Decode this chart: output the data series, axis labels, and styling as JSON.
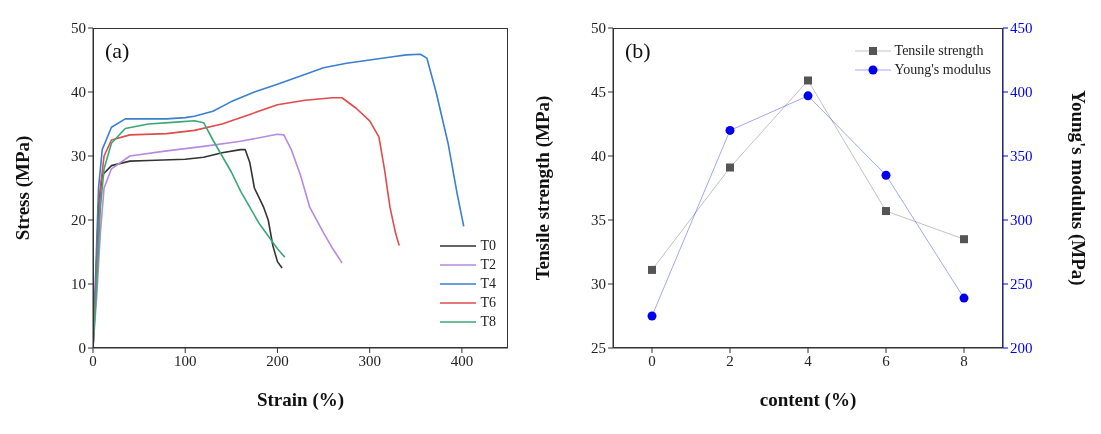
{
  "chart_data": [
    {
      "type": "line",
      "xlabel": "Strain (%)",
      "ylabel": "Stress (MPa)",
      "annotations": [
        "(a)"
      ],
      "xlim": [
        0,
        450
      ],
      "xticks": [
        0,
        100,
        200,
        300,
        400
      ],
      "ylim": [
        0,
        50
      ],
      "yticks": [
        0,
        10,
        20,
        30,
        40,
        50
      ],
      "grid": false,
      "legend": "bottom right",
      "marker": "none",
      "series": [
        {
          "name": "T0",
          "color": "#333333",
          "x": [
            0,
            3,
            6,
            10,
            20,
            40,
            60,
            100,
            120,
            140,
            160,
            165,
            170,
            175,
            185,
            190,
            195,
            200,
            205
          ],
          "values": [
            0,
            10,
            22,
            27,
            28.5,
            29.2,
            29.3,
            29.5,
            29.8,
            30.5,
            31,
            31,
            29,
            25,
            22,
            20,
            16,
            13.5,
            12.5
          ]
        },
        {
          "name": "T2",
          "color": "#b58ae0",
          "x": [
            0,
            4,
            8,
            12,
            20,
            40,
            80,
            120,
            160,
            200,
            207,
            215,
            225,
            235,
            250,
            260,
            270
          ],
          "values": [
            0,
            8,
            18,
            25,
            28,
            30,
            30.8,
            31.5,
            32.3,
            33.4,
            33.3,
            31,
            27,
            22,
            18,
            15.5,
            13.3
          ]
        },
        {
          "name": "T4",
          "color": "#3a7fd0",
          "x": [
            0,
            3,
            6,
            10,
            20,
            35,
            60,
            80,
            100,
            110,
            130,
            150,
            175,
            200,
            225,
            250,
            275,
            300,
            325,
            340,
            355,
            362,
            372,
            385,
            395,
            402
          ],
          "values": [
            0,
            12,
            25,
            31,
            34.5,
            35.8,
            35.8,
            35.8,
            36,
            36.2,
            37,
            38.5,
            40,
            41.2,
            42.5,
            43.8,
            44.5,
            45,
            45.5,
            45.8,
            45.9,
            45.3,
            40,
            32,
            24,
            19
          ]
        },
        {
          "name": "T6",
          "color": "#e04b4b",
          "x": [
            0,
            4,
            8,
            12,
            20,
            40,
            80,
            110,
            140,
            170,
            200,
            230,
            260,
            270,
            285,
            300,
            310,
            316,
            322,
            328,
            332
          ],
          "values": [
            0,
            12,
            25,
            30,
            32.5,
            33.3,
            33.5,
            34,
            35,
            36.5,
            38,
            38.7,
            39.1,
            39.1,
            37.5,
            35.5,
            33,
            28,
            22,
            18,
            16
          ]
        },
        {
          "name": "T8",
          "color": "#3aa876",
          "x": [
            0,
            4,
            8,
            12,
            20,
            35,
            60,
            90,
            110,
            120,
            130,
            140,
            150,
            160,
            170,
            180,
            190,
            200,
            208
          ],
          "values": [
            0,
            10,
            22,
            28,
            32,
            34.3,
            35,
            35.3,
            35.5,
            35.2,
            32.5,
            30,
            27.5,
            24.5,
            22,
            19.5,
            17.5,
            15.5,
            14.2
          ]
        }
      ]
    },
    {
      "type": "line",
      "xlabel": "content (%)",
      "ylabel": "Tensile strength (MPa)",
      "y2label": "Young's modulus (MPa)",
      "annotations": [
        "(b)"
      ],
      "xlim": [
        -1,
        9
      ],
      "xticks": [
        0,
        2,
        4,
        6,
        8
      ],
      "ylim": [
        25,
        50
      ],
      "yticks": [
        25,
        30,
        35,
        40,
        45,
        50
      ],
      "y2lim": [
        200,
        450
      ],
      "y2ticks": [
        200,
        250,
        300,
        350,
        400,
        450
      ],
      "grid": false,
      "legend": "top right",
      "series": [
        {
          "name": "Tensile strength",
          "color": "#555555",
          "marker": "square",
          "x": [
            0,
            2,
            4,
            6,
            8
          ],
          "values": [
            31.1,
            39.1,
            45.9,
            35.7,
            33.5
          ]
        },
        {
          "name": "Young's modulus",
          "color": "#0000ee",
          "marker": "circle",
          "axis": "y2",
          "x": [
            0,
            2,
            4,
            6,
            8
          ],
          "values": [
            225,
            370,
            397,
            335,
            239
          ]
        }
      ]
    }
  ]
}
